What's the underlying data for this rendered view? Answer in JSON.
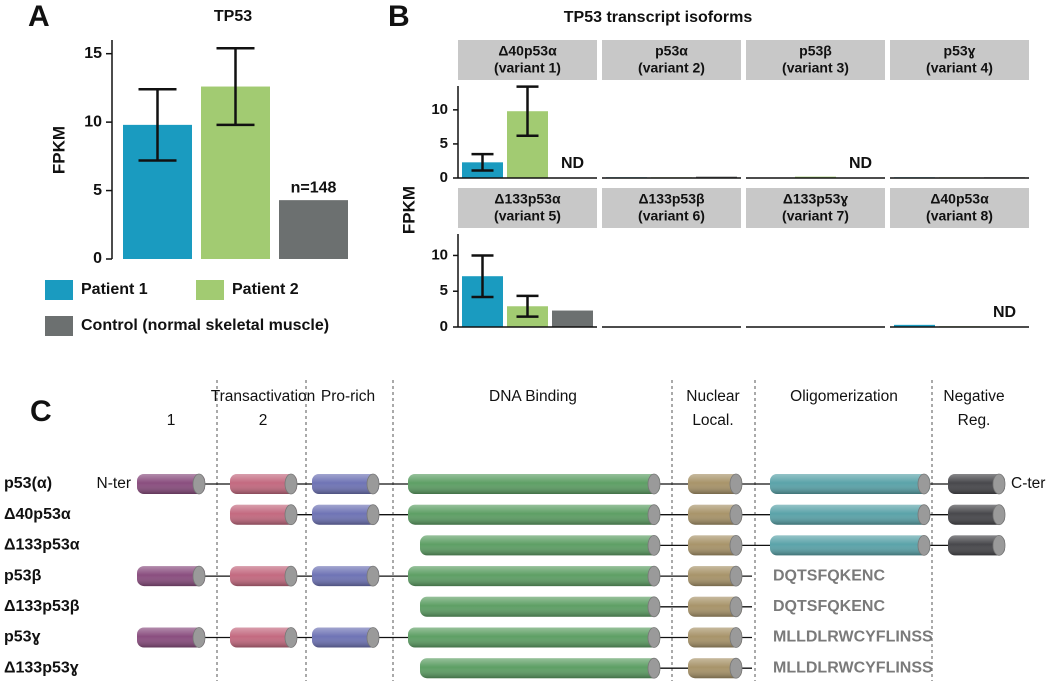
{
  "panel_labels": [
    "A",
    "B",
    "C"
  ],
  "chart_data": [
    {
      "type": "bar",
      "title": "TP53",
      "y_label": "FPKM",
      "ylim": [
        0,
        16
      ],
      "yticks": [
        0,
        5,
        10,
        15
      ],
      "series": [
        {
          "name": "Patient 1",
          "color": "#1a9bc0",
          "value": 9.8,
          "error": 2.6
        },
        {
          "name": "Patient 2",
          "color": "#a2cb72",
          "value": 12.6,
          "error": 2.8
        },
        {
          "name": "Control (normal skeletal muscle)",
          "color": "#6c7070",
          "value": 4.3,
          "annotation": "n=148"
        }
      ]
    },
    {
      "type": "facet-bar",
      "title": "TP53 transcript isoforms",
      "y_label": "FPKM",
      "rows": [
        {
          "ylim": [
            0,
            13.5
          ],
          "yticks": [
            0,
            5,
            10
          ],
          "panels": [
            {
              "title": "Δ40p53α",
              "subtitle": "(variant 1)",
              "values": [
                2.3,
                9.8,
                null
              ],
              "errors": [
                1.2,
                3.6,
                null
              ],
              "annotation": "ND"
            },
            {
              "title": "p53α",
              "subtitle": "(variant 2)",
              "values": [
                0.1,
                0.1,
                0.2
              ],
              "errors": [
                null,
                null,
                null
              ]
            },
            {
              "title": "p53β",
              "subtitle": "(variant 3)",
              "values": [
                0.05,
                0.2,
                null
              ],
              "errors": [
                null,
                null,
                null
              ],
              "annotation": "ND"
            },
            {
              "title": "p53ɣ",
              "subtitle": "(variant 4)",
              "values": [
                0.1,
                0.1,
                0.1
              ],
              "errors": [
                null,
                null,
                null
              ]
            }
          ]
        },
        {
          "ylim": [
            0,
            13
          ],
          "yticks": [
            0,
            5,
            10
          ],
          "panels": [
            {
              "title": "Δ133p53α",
              "subtitle": "(variant 5)",
              "values": [
                7.1,
                2.9,
                2.3
              ],
              "errors": [
                2.9,
                1.45,
                null
              ]
            },
            {
              "title": "Δ133p53β",
              "subtitle": "(variant 6)",
              "values": [
                0.05,
                0.05,
                0.05
              ],
              "errors": [
                null,
                null,
                null
              ]
            },
            {
              "title": "Δ133p53ɣ",
              "subtitle": "(variant 7)",
              "values": [
                0.05,
                0.05,
                0.05
              ],
              "errors": [
                null,
                null,
                null
              ]
            },
            {
              "title": "Δ40p53α",
              "subtitle": "(variant 8)",
              "values": [
                0.3,
                0.1,
                null
              ],
              "errors": [
                null,
                null,
                null
              ],
              "annotation": "ND"
            }
          ]
        }
      ]
    }
  ],
  "diagram": {
    "domains": [
      {
        "lines": [
          "Transactivation"
        ],
        "sublabels": [
          "1",
          "2"
        ]
      },
      {
        "lines": [
          "Pro-rich"
        ]
      },
      {
        "lines": [
          "DNA Binding"
        ]
      },
      {
        "lines": [
          "Nuclear",
          "Local."
        ]
      },
      {
        "lines": [
          "Oligomerization"
        ]
      },
      {
        "lines": [
          "Negative",
          "Reg."
        ]
      }
    ],
    "isoforms": [
      {
        "name": "p53(α)",
        "start": "N-ter",
        "end": "C-ter"
      },
      {
        "name": "Δ40p53α"
      },
      {
        "name": "Δ133p53α"
      },
      {
        "name": "p53β",
        "tail": "DQTSFQKENC"
      },
      {
        "name": "Δ133p53β",
        "tail": "DQTSFQKENC"
      },
      {
        "name": "p53ɣ",
        "tail": "MLLDLRWCYFLINSS"
      },
      {
        "name": "Δ133p53ɣ",
        "tail": "MLLDLRWCYFLINSS"
      }
    ]
  }
}
